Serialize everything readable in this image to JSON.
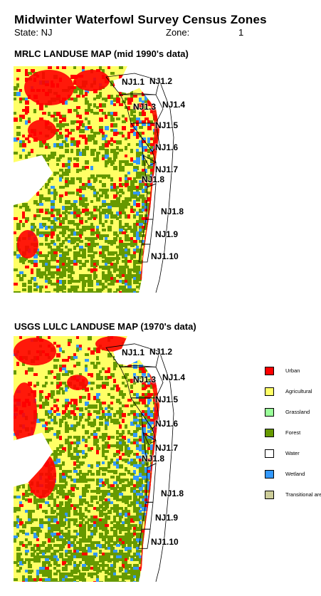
{
  "header": {
    "title": "Midwinter Waterfowl Survey Census Zones",
    "state_label": "State: NJ",
    "zone_label": "Zone:",
    "zone_value": "1"
  },
  "maps": [
    {
      "title": "MRLC LANDUSE MAP (mid 1990's data)",
      "zone_labels": [
        "NJ1.1",
        "NJ1.2",
        "NJ1.3",
        "NJ1.4",
        "NJ1.5",
        "NJ1.6",
        "NJ1.7",
        "NJ1.8",
        "NJ1.8",
        "NJ1.9",
        "NJ1.10"
      ]
    },
    {
      "title": "USGS LULC LANDUSE MAP (1970's data)",
      "zone_labels": [
        "NJ1.1",
        "NJ1.2",
        "NJ1.3",
        "NJ1.4",
        "NJ1.5",
        "NJ1.6",
        "NJ1.7",
        "NJ1.8",
        "NJ1.8",
        "NJ1.9",
        "NJ1.10"
      ]
    }
  ],
  "legend": [
    {
      "label": "Urban",
      "color": "#ff0000"
    },
    {
      "label": "Agricultural",
      "color": "#ffff66"
    },
    {
      "label": "Grassland",
      "color": "#99ff99"
    },
    {
      "label": "Forest",
      "color": "#669900"
    },
    {
      "label": "Water",
      "color": "#ffffff"
    },
    {
      "label": "Wetland",
      "color": "#3399ff"
    },
    {
      "label": "Transitional area",
      "color": "#cccc99"
    }
  ]
}
